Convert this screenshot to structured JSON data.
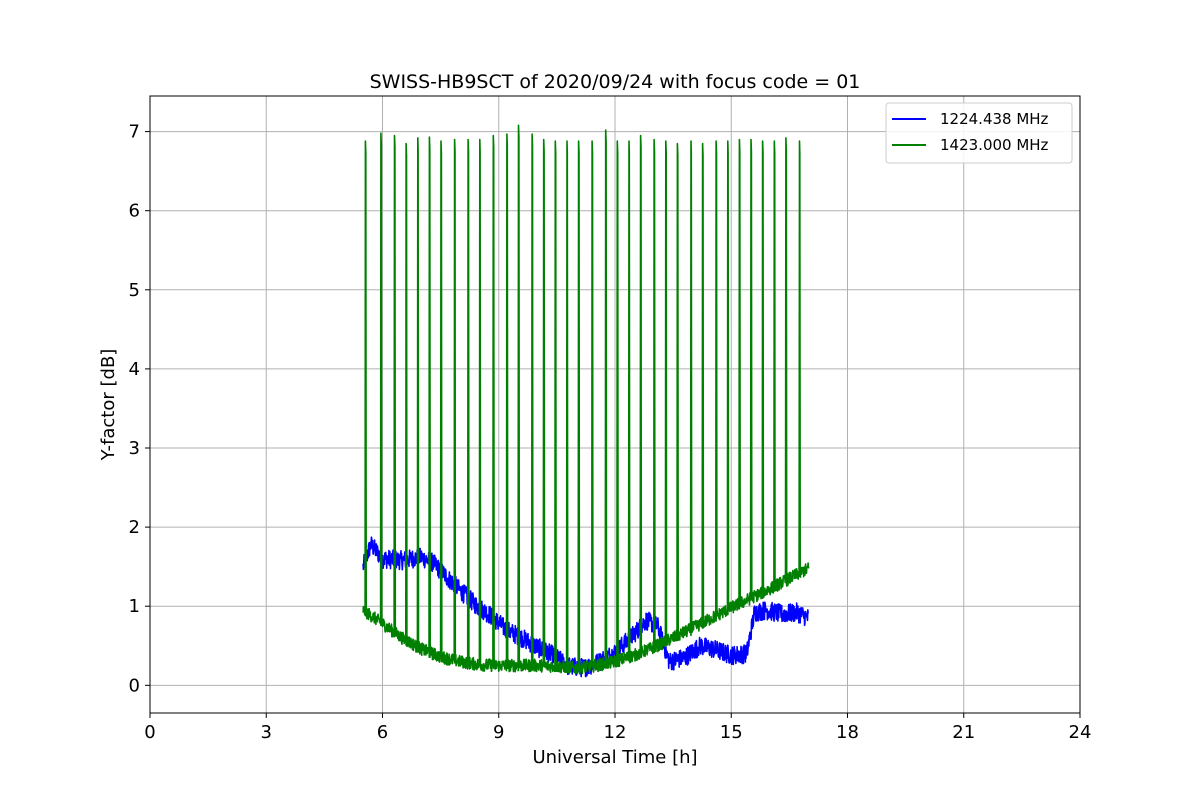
{
  "chart_data": {
    "type": "line",
    "title": "SWISS-HB9SCT of 2020/09/24 with focus code = 01",
    "xlabel": "Universal Time [h]",
    "ylabel": "Y-factor [dB]",
    "xlim": [
      0,
      24
    ],
    "ylim": [
      -0.35,
      7.45
    ],
    "xticks": [
      "0",
      "3",
      "6",
      "9",
      "12",
      "15",
      "18",
      "21",
      "24"
    ],
    "yticks": [
      "0",
      "1",
      "2",
      "3",
      "4",
      "5",
      "6",
      "7"
    ],
    "grid": true,
    "legend_position": "top-right",
    "series": [
      {
        "name": "1224.438 MHz",
        "color": "#0000ff",
        "x": [
          5.5,
          5.7,
          6.0,
          6.5,
          7.0,
          7.3,
          7.6,
          8.0,
          8.4,
          8.8,
          9.2,
          9.6,
          10.0,
          10.4,
          10.8,
          11.2,
          11.6,
          12.0,
          12.4,
          12.8,
          13.1,
          13.4,
          13.8,
          14.2,
          14.6,
          15.0,
          15.4,
          15.6,
          15.9,
          16.3,
          16.7,
          17.0
        ],
        "y": [
          1.5,
          1.78,
          1.6,
          1.58,
          1.62,
          1.55,
          1.4,
          1.2,
          1.02,
          0.88,
          0.7,
          0.6,
          0.48,
          0.38,
          0.24,
          0.22,
          0.3,
          0.42,
          0.6,
          0.82,
          0.75,
          0.3,
          0.35,
          0.5,
          0.45,
          0.38,
          0.4,
          0.92,
          0.95,
          0.9,
          0.92,
          0.85
        ],
        "noise": 0.12
      },
      {
        "name": "1423.000 MHz",
        "color": "#008000",
        "x": [
          5.5,
          6.0,
          6.5,
          7.0,
          7.5,
          8.0,
          8.5,
          9.0,
          9.5,
          10.0,
          10.5,
          11.0,
          11.5,
          12.0,
          12.5,
          13.0,
          13.5,
          14.0,
          14.5,
          15.0,
          15.5,
          16.0,
          16.5,
          17.0
        ],
        "y": [
          0.95,
          0.78,
          0.6,
          0.46,
          0.36,
          0.3,
          0.26,
          0.25,
          0.25,
          0.25,
          0.24,
          0.22,
          0.25,
          0.3,
          0.38,
          0.48,
          0.6,
          0.72,
          0.85,
          0.98,
          1.1,
          1.22,
          1.35,
          1.48
        ],
        "noise": 0.08,
        "spike_times": [
          5.55,
          5.95,
          6.3,
          6.6,
          6.9,
          7.2,
          7.5,
          7.85,
          8.2,
          8.5,
          8.85,
          9.2,
          9.5,
          9.85,
          10.15,
          10.45,
          10.75,
          11.05,
          11.4,
          11.75,
          12.05,
          12.35,
          12.65,
          13.0,
          13.3,
          13.6,
          13.95,
          14.25,
          14.6,
          14.9,
          15.2,
          15.5,
          15.8,
          16.1,
          16.4,
          16.75
        ],
        "spike_peaks": [
          6.88,
          6.98,
          6.95,
          6.85,
          6.92,
          6.93,
          6.88,
          6.9,
          6.9,
          6.9,
          6.95,
          6.97,
          7.08,
          6.97,
          6.9,
          6.88,
          6.88,
          6.88,
          6.88,
          7.02,
          6.88,
          6.88,
          6.95,
          6.9,
          6.88,
          6.85,
          6.88,
          6.85,
          6.88,
          6.88,
          6.9,
          6.9,
          6.88,
          6.88,
          6.92,
          6.88
        ]
      }
    ]
  }
}
